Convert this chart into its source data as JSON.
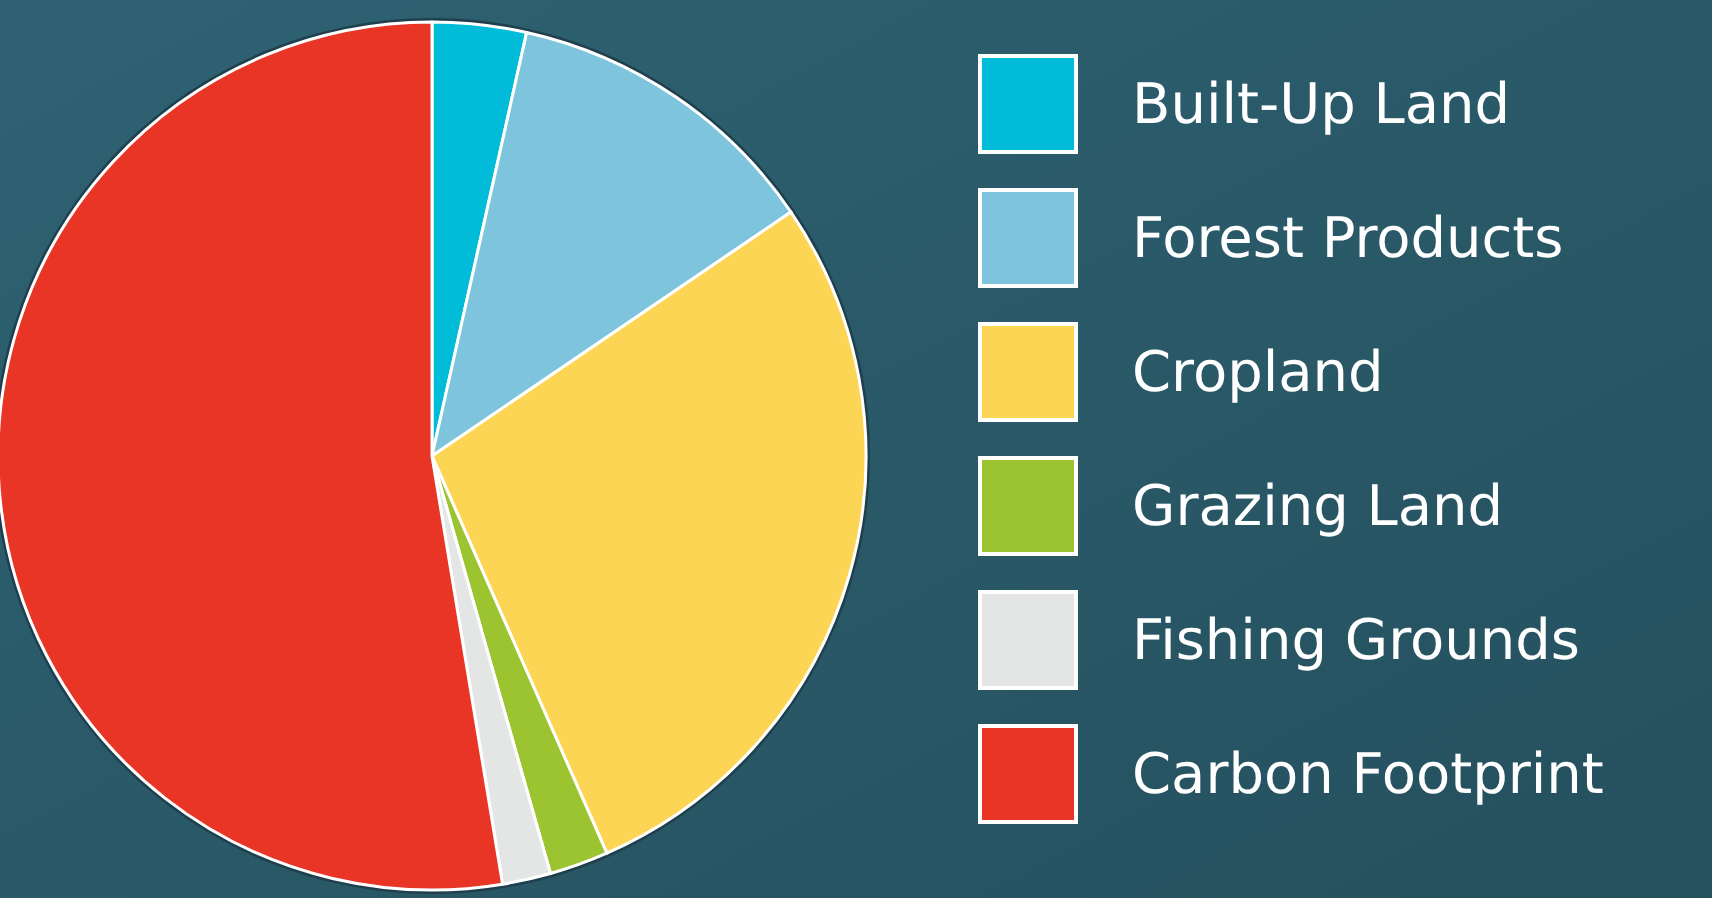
{
  "chart_data": {
    "type": "pie",
    "categories": [
      "Built-Up Land",
      "Forest Products",
      "Cropland",
      "Grazing Land",
      "Fishing Grounds",
      "Carbon Footprint"
    ],
    "values": [
      3.5,
      12,
      27.9,
      2.2,
      1.8,
      52.6
    ],
    "colors": [
      "#00bcd8",
      "#7ec4dc",
      "#fdd554",
      "#9cc430",
      "#e4e6e6",
      "#e83525"
    ],
    "legend": "right"
  }
}
